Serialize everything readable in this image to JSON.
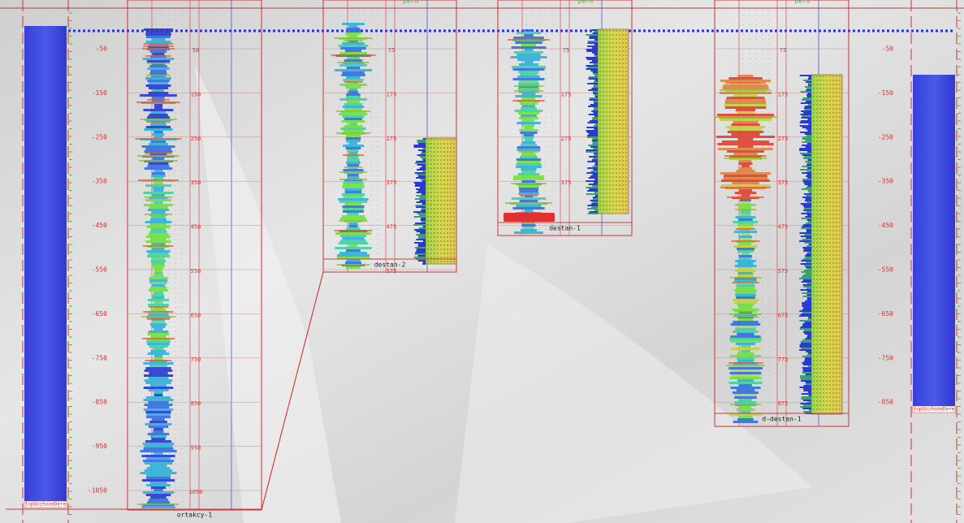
{
  "left_axis": {
    "labels": [
      "-50",
      "-150",
      "-250",
      "-350",
      "-450",
      "-550",
      "-650",
      "-750",
      "-850",
      "-950",
      "-1050"
    ],
    "marker": "topGozhoneDere"
  },
  "right_axis": {
    "labels": [
      "-50",
      "-150",
      "-250",
      "-350",
      "-450",
      "-550",
      "-650",
      "-750",
      "-850"
    ],
    "marker": "topGozhoneDere"
  },
  "wells": [
    {
      "name": "ortakcy-1",
      "depth_labels": [
        "50",
        "150",
        "250",
        "350",
        "450",
        "550",
        "650",
        "750",
        "850",
        "950",
        "1050"
      ]
    },
    {
      "name": "destan-2",
      "track_header": "perm",
      "depth_labels": [
        "75",
        "175",
        "275",
        "375",
        "475",
        "575"
      ]
    },
    {
      "name": "destan-1",
      "track_header": "perm",
      "depth_labels": [
        "75",
        "175",
        "275",
        "375"
      ]
    },
    {
      "name": "d-destan-1",
      "track_header": "perm",
      "depth_labels": [
        "75",
        "175",
        "275",
        "375",
        "475",
        "575",
        "675",
        "775",
        "875"
      ]
    }
  ]
}
